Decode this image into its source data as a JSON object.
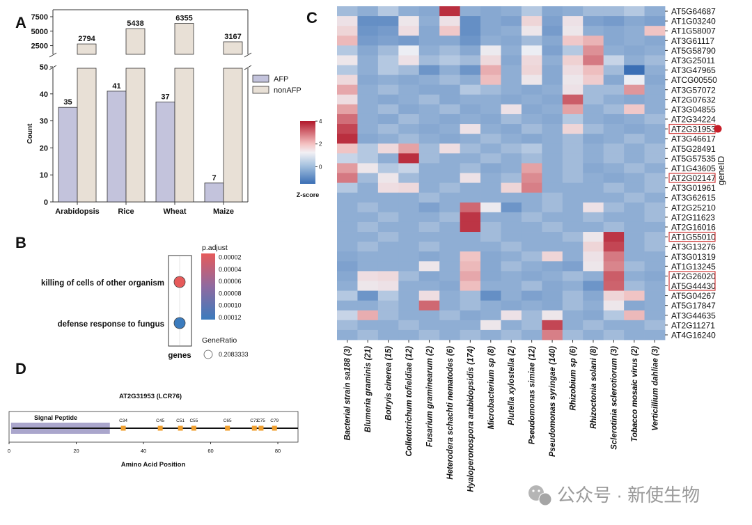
{
  "colors": {
    "afp": "#c3c3dc",
    "nonafp": "#e8e0d6",
    "stroke": "#333333",
    "site": "#f0a030",
    "signal": "#aaa6cc",
    "watermark": "#9a9a9a"
  },
  "watermark": "公众号 · 新使生物",
  "chart_data": [
    {
      "panel": "A",
      "type": "bar",
      "categories": [
        "Arabidopsis",
        "Rice",
        "Wheat",
        "Maize"
      ],
      "series": [
        {
          "name": "AFP",
          "values": [
            35,
            41,
            37,
            7
          ]
        },
        {
          "name": "nonAFP",
          "values": [
            2794,
            5438,
            6355,
            3167
          ]
        }
      ],
      "ylabel": "Count",
      "ylim_lower": [
        0,
        50
      ],
      "ylim_upper": [
        1000,
        7500
      ],
      "yticks_lower": [
        0,
        10,
        20,
        30,
        40,
        50
      ],
      "yticks_upper": [
        2500,
        5000,
        7500
      ],
      "legend": "right"
    },
    {
      "panel": "B",
      "type": "scatter",
      "terms": [
        "killing of cells of other organism",
        "defense response to fungus"
      ],
      "p_adjust": [
        1e-05,
        0.00012
      ],
      "gene_ratio": [
        0.2083333,
        0.2083333
      ],
      "xlabel": "genes",
      "color_title": "p.adjust",
      "color_ticks": [
        "0.00002",
        "0.00004",
        "0.00006",
        "0.00008",
        "0.00010",
        "0.00012"
      ],
      "size_title": "GeneRatio",
      "size_label": "0.2083333"
    },
    {
      "panel": "C",
      "type": "heatmap",
      "rows": [
        "AT5G64687",
        "AT1G03240",
        "AT1G58007",
        "AT3G61117",
        "AT5G58790",
        "AT3G25011",
        "AT3G47965",
        "ATCG00550",
        "AT3G57072",
        "AT2G07632",
        "AT3G04855",
        "AT2G34224",
        "AT2G31953",
        "AT3G46617",
        "AT5G28491",
        "AT5G57535",
        "AT1G43605",
        "AT2G02147",
        "AT3G01961",
        "AT3G62615",
        "AT2G25210",
        "AT2G11623",
        "AT2G16016",
        "AT1G55010",
        "AT3G13276",
        "AT3G01319",
        "AT1G13245",
        "AT2G26020",
        "AT5G44430",
        "AT5G04267",
        "AT5G17847",
        "AT3G44635",
        "AT2G11271",
        "AT4G16240"
      ],
      "columns": [
        "Bacterial strain sa188 (3)",
        "Blumeria graminis (21)",
        "Botryis cinerea (15)",
        "Colletotrichum tofieldiae (12)",
        "Fusarium graminearum (2)",
        "Heterodera schachti nematodes (6)",
        "Hyaloperonospora arabidopsidis (174)",
        "Microbacterium sp (8)",
        "Plutella xylostella (2)",
        "Pseudomonas simiae (12)",
        "Pseudomonas syringae (140)",
        "Rhizobium sp (6)",
        "Rhizoctonia solani (8)",
        "Sclerotinia sclerotiorum (3)",
        "Tobacco mosaic virus (2)",
        "Verticillium dahliae (3)"
      ],
      "highlighted_rows": [
        "AT2G31953",
        "AT2G02147",
        "AT1G55010",
        "AT2G26020",
        "AT5G44430"
      ],
      "marked_row": "AT2G31953",
      "colorbar_title": "Z-score",
      "colorbar_ticks": [
        "4",
        "2",
        "0"
      ],
      "zlim": [
        -1.5,
        4
      ],
      "row_axis_label": "geneID",
      "values": [
        [
          -0.4,
          -0.5,
          -0.3,
          -0.5,
          -0.6,
          3.6,
          -0.5,
          -0.6,
          -0.5,
          -0.3,
          -0.6,
          -0.5,
          -0.4,
          -0.4,
          -0.3,
          -0.5
        ],
        [
          0.3,
          -1.0,
          -1.0,
          0.2,
          -0.5,
          0.3,
          -1.0,
          -0.6,
          -0.7,
          0.6,
          -0.7,
          0.3,
          -0.7,
          -0.8,
          -0.6,
          -0.7
        ],
        [
          0.6,
          -0.9,
          -0.8,
          0.4,
          -0.6,
          0.9,
          -1.0,
          -0.6,
          -0.5,
          0.2,
          -0.8,
          0.2,
          -0.5,
          -0.6,
          -0.5,
          1.0
        ],
        [
          1.2,
          -0.8,
          -0.7,
          -0.8,
          -0.6,
          -0.6,
          -0.9,
          -0.5,
          -0.6,
          -0.4,
          -0.6,
          0.9,
          1.3,
          -0.6,
          -0.5,
          -0.6
        ],
        [
          -0.3,
          -0.6,
          -0.4,
          0.0,
          -0.5,
          -0.4,
          -0.6,
          0.1,
          -0.5,
          0.0,
          -0.7,
          -0.3,
          1.9,
          -0.5,
          -0.6,
          -0.5
        ],
        [
          0.2,
          -0.5,
          -0.3,
          0.3,
          -0.4,
          -0.3,
          -0.4,
          0.5,
          -0.6,
          0.5,
          -0.5,
          0.7,
          2.3,
          -0.2,
          -0.5,
          -0.4
        ],
        [
          -0.3,
          -0.5,
          -0.3,
          -0.4,
          -0.9,
          -0.5,
          -0.9,
          1.4,
          -0.5,
          0.6,
          -0.6,
          0.4,
          1.1,
          -0.4,
          -2.0,
          -0.5
        ],
        [
          0.5,
          -0.6,
          -0.5,
          -0.6,
          -0.5,
          -0.4,
          -0.5,
          1.1,
          -0.5,
          0.2,
          -0.6,
          0.2,
          0.8,
          -0.6,
          0.0,
          -0.6
        ],
        [
          1.5,
          -0.5,
          -0.4,
          -0.5,
          -0.6,
          -0.6,
          -0.3,
          -0.4,
          -0.5,
          -0.6,
          -0.5,
          0.3,
          -0.4,
          -0.4,
          1.8,
          -0.5
        ],
        [
          0.4,
          -0.5,
          -0.6,
          -0.5,
          -0.4,
          -0.6,
          -0.5,
          -0.5,
          -0.6,
          -0.5,
          -0.6,
          2.8,
          -0.4,
          -0.5,
          -0.6,
          -0.5
        ],
        [
          1.6,
          -0.5,
          -0.4,
          -0.6,
          -0.5,
          -0.4,
          -0.6,
          -0.5,
          0.3,
          -0.6,
          -0.5,
          1.6,
          -0.5,
          -0.4,
          0.9,
          -0.5
        ],
        [
          2.5,
          -0.5,
          -0.6,
          -0.4,
          -0.5,
          -0.6,
          -0.5,
          -0.6,
          -0.4,
          -0.5,
          -0.6,
          -0.3,
          -0.5,
          -0.6,
          -0.5,
          -0.4
        ],
        [
          3.2,
          -0.5,
          -0.4,
          -0.5,
          -0.6,
          -0.5,
          0.3,
          -0.5,
          -0.6,
          -0.4,
          -0.5,
          0.6,
          -0.4,
          -0.5,
          -0.6,
          -0.5
        ],
        [
          3.6,
          -0.6,
          -0.5,
          -0.4,
          -0.5,
          -0.6,
          -0.5,
          -0.4,
          -0.5,
          -0.6,
          -0.5,
          -0.4,
          -0.6,
          -0.5,
          -0.4,
          -0.5
        ],
        [
          1.0,
          -0.3,
          0.5,
          1.6,
          -0.4,
          0.4,
          -0.4,
          -0.5,
          -0.4,
          -0.3,
          -0.5,
          -0.4,
          -0.5,
          -0.4,
          -0.5,
          -0.4
        ],
        [
          -0.2,
          -0.3,
          -0.5,
          3.6,
          -0.4,
          -0.5,
          -0.5,
          -0.4,
          -0.5,
          -0.4,
          -0.5,
          -0.4,
          -0.5,
          -0.4,
          -0.5,
          -0.4
        ],
        [
          1.7,
          0.2,
          -0.3,
          -0.2,
          -0.5,
          -0.5,
          -0.4,
          -0.6,
          -0.5,
          1.6,
          -0.5,
          -0.4,
          -0.6,
          -0.5,
          -0.4,
          -0.5
        ],
        [
          2.3,
          -0.4,
          0.2,
          -0.4,
          -0.5,
          -0.5,
          0.3,
          -0.5,
          -0.4,
          2.0,
          -0.5,
          -0.4,
          -0.5,
          -0.6,
          -0.5,
          -0.4
        ],
        [
          -0.3,
          -0.5,
          0.4,
          0.5,
          -0.5,
          -0.4,
          -0.5,
          -0.5,
          0.6,
          2.2,
          -0.5,
          -0.5,
          -0.5,
          -0.4,
          -0.5,
          -0.4
        ],
        [
          -0.5,
          -0.5,
          -0.5,
          -0.5,
          -0.4,
          -0.5,
          -0.5,
          -0.5,
          -0.5,
          -0.5,
          -0.4,
          -0.5,
          -0.5,
          -0.5,
          -0.4,
          -0.5
        ],
        [
          -0.5,
          -0.4,
          -0.5,
          -0.5,
          -0.7,
          -0.5,
          2.6,
          0.1,
          -0.9,
          -0.5,
          -0.4,
          -0.5,
          0.3,
          -0.4,
          -0.5,
          -0.4
        ],
        [
          -0.5,
          -0.5,
          -0.4,
          -0.5,
          -0.5,
          -0.4,
          3.5,
          -0.5,
          -0.5,
          -0.4,
          -0.5,
          -0.5,
          -0.4,
          -0.5,
          -0.5,
          -0.4
        ],
        [
          -0.5,
          -0.4,
          -0.5,
          -0.5,
          -0.4,
          -0.5,
          3.5,
          -0.4,
          -0.5,
          -0.5,
          -0.4,
          -0.5,
          -0.5,
          -0.4,
          -0.5,
          -0.5
        ],
        [
          -0.5,
          -0.5,
          -0.4,
          -0.5,
          -0.5,
          -0.5,
          -0.5,
          -0.4,
          -0.5,
          -0.5,
          -0.5,
          -0.4,
          0.2,
          3.5,
          -0.5,
          -0.4
        ],
        [
          -0.5,
          -0.4,
          -0.5,
          -0.5,
          -0.4,
          -0.5,
          -0.5,
          -0.5,
          -0.4,
          -0.5,
          -0.5,
          -0.5,
          0.6,
          3.2,
          -0.5,
          -0.4
        ],
        [
          -0.6,
          -0.5,
          -0.5,
          -0.5,
          -0.6,
          -0.5,
          1.0,
          -0.6,
          -0.5,
          -0.4,
          0.6,
          -0.5,
          0.3,
          2.3,
          -0.5,
          -0.5
        ],
        [
          -0.7,
          -0.5,
          -0.5,
          -0.5,
          0.2,
          -0.5,
          1.2,
          -0.6,
          -0.4,
          -0.5,
          -0.6,
          -0.7,
          0.2,
          2.1,
          -0.4,
          -0.5
        ],
        [
          -0.6,
          0.4,
          0.5,
          -0.4,
          -0.6,
          -0.5,
          1.5,
          -0.6,
          -0.5,
          -0.6,
          -0.5,
          -0.4,
          -0.5,
          2.8,
          -0.5,
          -0.6
        ],
        [
          -0.5,
          0.2,
          0.3,
          -0.5,
          -0.5,
          -0.6,
          1.1,
          -0.5,
          -0.5,
          -0.4,
          -0.6,
          -0.5,
          -0.9,
          2.7,
          -0.4,
          -0.5
        ],
        [
          -0.3,
          -0.9,
          -0.3,
          -0.5,
          0.4,
          -0.5,
          -0.4,
          -1.0,
          -0.5,
          -0.7,
          -0.6,
          -0.4,
          -0.6,
          0.6,
          1.0,
          -0.5
        ],
        [
          -0.5,
          -0.5,
          -0.4,
          -0.5,
          2.6,
          -0.5,
          -0.4,
          -0.5,
          -0.6,
          -0.5,
          -0.6,
          -0.4,
          -0.5,
          0.2,
          -0.6,
          -0.5
        ],
        [
          -0.2,
          1.4,
          -0.4,
          -0.5,
          -0.5,
          -0.4,
          -0.6,
          -0.5,
          0.3,
          -0.4,
          0.2,
          -0.5,
          -0.6,
          -0.3,
          1.2,
          -0.5
        ],
        [
          -0.4,
          -0.5,
          -0.5,
          -0.4,
          -0.5,
          -0.5,
          -0.5,
          0.2,
          -0.5,
          -0.4,
          3.2,
          -0.5,
          -0.4,
          -0.5,
          -0.5,
          -0.4
        ],
        [
          -0.5,
          -0.4,
          -0.5,
          -0.5,
          -0.4,
          -0.5,
          -0.4,
          -0.5,
          -0.4,
          -0.5,
          2.2,
          -0.4,
          -0.5,
          -0.4,
          -0.5,
          -0.5
        ]
      ]
    },
    {
      "panel": "D",
      "type": "diagram",
      "title": "AT2G31953 (LCR76)",
      "xlabel": "Amino Acid Position",
      "xlim": [
        0,
        86
      ],
      "xticks": [
        0,
        20,
        40,
        60,
        80
      ],
      "signal_label": "Signal Peptide",
      "signal_range": [
        1,
        30
      ],
      "sites": [
        {
          "label": "C34",
          "pos": 34
        },
        {
          "label": "C45",
          "pos": 45
        },
        {
          "label": "C51",
          "pos": 51
        },
        {
          "label": "C55",
          "pos": 55
        },
        {
          "label": "C65",
          "pos": 65
        },
        {
          "label": "C73",
          "pos": 73
        },
        {
          "label": "C75",
          "pos": 75
        },
        {
          "label": "C79",
          "pos": 79
        }
      ]
    }
  ],
  "panel_labels": {
    "a": "A",
    "b": "B",
    "c": "C",
    "d": "D"
  }
}
